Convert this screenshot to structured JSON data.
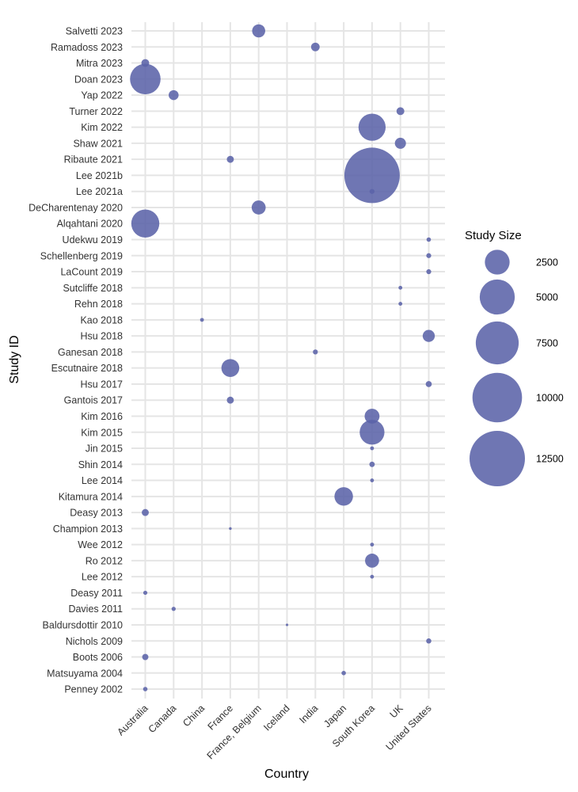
{
  "chart_data": {
    "type": "scatter",
    "subtype": "bubble",
    "title": "",
    "xlabel": "Country",
    "ylabel": "Study ID",
    "legend_title": "Study Size",
    "legend_placement": "right",
    "legend_sizes": [
      2500,
      5000,
      7500,
      10000,
      12500
    ],
    "legend_labels": [
      "2500",
      "5000",
      "7500",
      "10000",
      "12500"
    ],
    "grid": true,
    "color": "#5b63a8",
    "categories_x": [
      "Australia",
      "Canada",
      "China",
      "France",
      "France, Belgium",
      "Iceland",
      "India",
      "Japan",
      "South Korea",
      "UK",
      "United States"
    ],
    "categories_y": [
      "Salvetti 2023",
      "Ramadoss 2023",
      "Mitra 2023",
      "Doan 2023",
      "Yap 2022",
      "Turner 2022",
      "Kim 2022",
      "Shaw 2021",
      "Ribaute 2021",
      "Lee 2021b",
      "Lee 2021a",
      "DeCharentenay 2020",
      "Alqahtani 2020",
      "Udekwu 2019",
      "Schellenberg 2019",
      "LaCount 2019",
      "Sutcliffe 2018",
      "Rehn 2018",
      "Kao 2018",
      "Hsu 2018",
      "Ganesan 2018",
      "Escutnaire 2018",
      "Hsu 2017",
      "Gantois 2017",
      "Kim 2016",
      "Kim 2015",
      "Jin 2015",
      "Shin 2014",
      "Lee 2014",
      "Kitamura 2014",
      "Deasy 2013",
      "Champion 2013",
      "Wee 2012",
      "Ro 2012",
      "Lee 2012",
      "Deasy 2011",
      "Davies 2011",
      "Baldursdottir 2010",
      "Nichols 2009",
      "Boots 2006",
      "Matsuyama 2004",
      "Penney 2002"
    ],
    "points": [
      {
        "study": "Salvetti 2023",
        "country": "France, Belgium",
        "size": 700
      },
      {
        "study": "Ramadoss 2023",
        "country": "India",
        "size": 300
      },
      {
        "study": "Mitra 2023",
        "country": "Australia",
        "size": 250
      },
      {
        "study": "Doan 2023",
        "country": "Australia",
        "size": 3800
      },
      {
        "study": "Yap 2022",
        "country": "Canada",
        "size": 400
      },
      {
        "study": "Turner 2022",
        "country": "UK",
        "size": 250
      },
      {
        "study": "Kim 2022",
        "country": "South Korea",
        "size": 3000
      },
      {
        "study": "Shaw 2021",
        "country": "UK",
        "size": 500
      },
      {
        "study": "Ribaute 2021",
        "country": "France",
        "size": 200
      },
      {
        "study": "Lee 2021b",
        "country": "South Korea",
        "size": 12500
      },
      {
        "study": "Lee 2021a",
        "country": "South Korea",
        "size": 100
      },
      {
        "study": "DeCharentenay 2020",
        "country": "France, Belgium",
        "size": 800
      },
      {
        "study": "Alqahtani 2020",
        "country": "Australia",
        "size": 3200
      },
      {
        "study": "Udekwu 2019",
        "country": "United States",
        "size": 80
      },
      {
        "study": "Schellenberg 2019",
        "country": "United States",
        "size": 100
      },
      {
        "study": "LaCount 2019",
        "country": "United States",
        "size": 100
      },
      {
        "study": "Sutcliffe 2018",
        "country": "UK",
        "size": 60
      },
      {
        "study": "Rehn 2018",
        "country": "UK",
        "size": 60
      },
      {
        "study": "Kao 2018",
        "country": "China",
        "size": 60
      },
      {
        "study": "Hsu 2018",
        "country": "United States",
        "size": 600
      },
      {
        "study": "Ganesan 2018",
        "country": "India",
        "size": 100
      },
      {
        "study": "Escutnaire 2018",
        "country": "France",
        "size": 1300
      },
      {
        "study": "Hsu 2017",
        "country": "United States",
        "size": 150
      },
      {
        "study": "Gantois 2017",
        "country": "France",
        "size": 200
      },
      {
        "study": "Kim 2016",
        "country": "South Korea",
        "size": 900
      },
      {
        "study": "Kim 2015",
        "country": "South Korea",
        "size": 2500
      },
      {
        "study": "Jin 2015",
        "country": "South Korea",
        "size": 60
      },
      {
        "study": "Shin 2014",
        "country": "South Korea",
        "size": 120
      },
      {
        "study": "Lee 2014",
        "country": "South Korea",
        "size": 60
      },
      {
        "study": "Kitamura 2014",
        "country": "Japan",
        "size": 1400
      },
      {
        "study": "Deasy 2013",
        "country": "Australia",
        "size": 200
      },
      {
        "study": "Champion 2013",
        "country": "France",
        "size": 30
      },
      {
        "study": "Wee 2012",
        "country": "South Korea",
        "size": 60
      },
      {
        "study": "Ro 2012",
        "country": "South Korea",
        "size": 800
      },
      {
        "study": "Lee 2012",
        "country": "South Korea",
        "size": 60
      },
      {
        "study": "Deasy 2011",
        "country": "Australia",
        "size": 70
      },
      {
        "study": "Davies 2011",
        "country": "Canada",
        "size": 70
      },
      {
        "study": "Baldursdottir 2010",
        "country": "Iceland",
        "size": 25
      },
      {
        "study": "Nichols 2009",
        "country": "United States",
        "size": 110
      },
      {
        "study": "Boots 2006",
        "country": "Australia",
        "size": 160
      },
      {
        "study": "Matsuyama 2004",
        "country": "Japan",
        "size": 80
      },
      {
        "study": "Penney 2002",
        "country": "Australia",
        "size": 80
      }
    ]
  }
}
